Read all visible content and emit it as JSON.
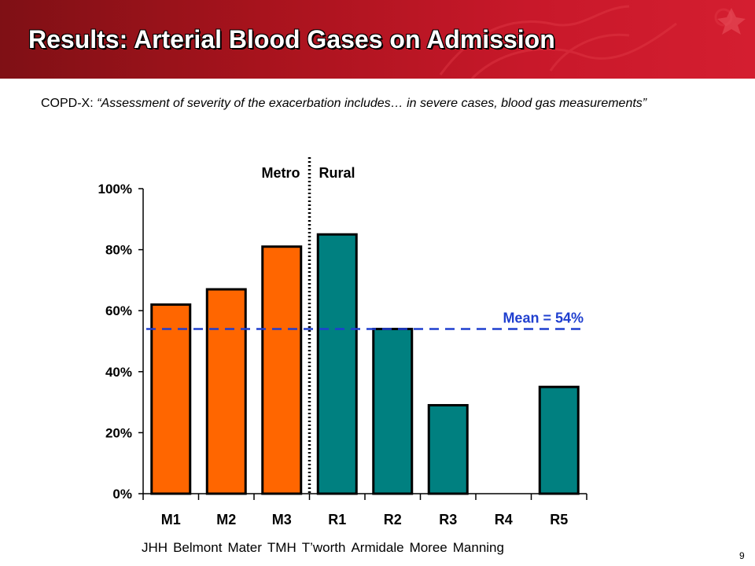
{
  "header": {
    "title": "Results: Arterial Blood Gases on Admission"
  },
  "quote": {
    "prefix": "COPD-X:",
    "text": "“Assessment of severity of the exacerbation includes… in severe cases, blood gas measurements”"
  },
  "colors": {
    "metro": "#ff6600",
    "rural": "#008080",
    "mean_line": "#1f3fcf",
    "header": "#b8141f"
  },
  "chart_data": {
    "type": "bar",
    "categories": [
      "M1",
      "M2",
      "M3",
      "R1",
      "R2",
      "R3",
      "R4",
      "R5"
    ],
    "values": [
      62,
      67,
      81,
      85,
      54,
      29,
      0,
      35
    ],
    "groups": [
      "Metro",
      "Metro",
      "Metro",
      "Rural",
      "Rural",
      "Rural",
      "Rural",
      "Rural"
    ],
    "group_labels": {
      "metro": "Metro",
      "rural": "Rural"
    },
    "yticks": [
      "0%",
      "20%",
      "40%",
      "60%",
      "80%",
      "100%"
    ],
    "ylim": [
      0,
      100
    ],
    "mean_value": 54,
    "mean_label": "Mean = 54%"
  },
  "hospitals": [
    "JHH",
    "Belmont",
    "Mater",
    "TMH",
    "T’worth",
    "Armidale",
    "Moree",
    "Manning"
  ],
  "page_number": "9"
}
